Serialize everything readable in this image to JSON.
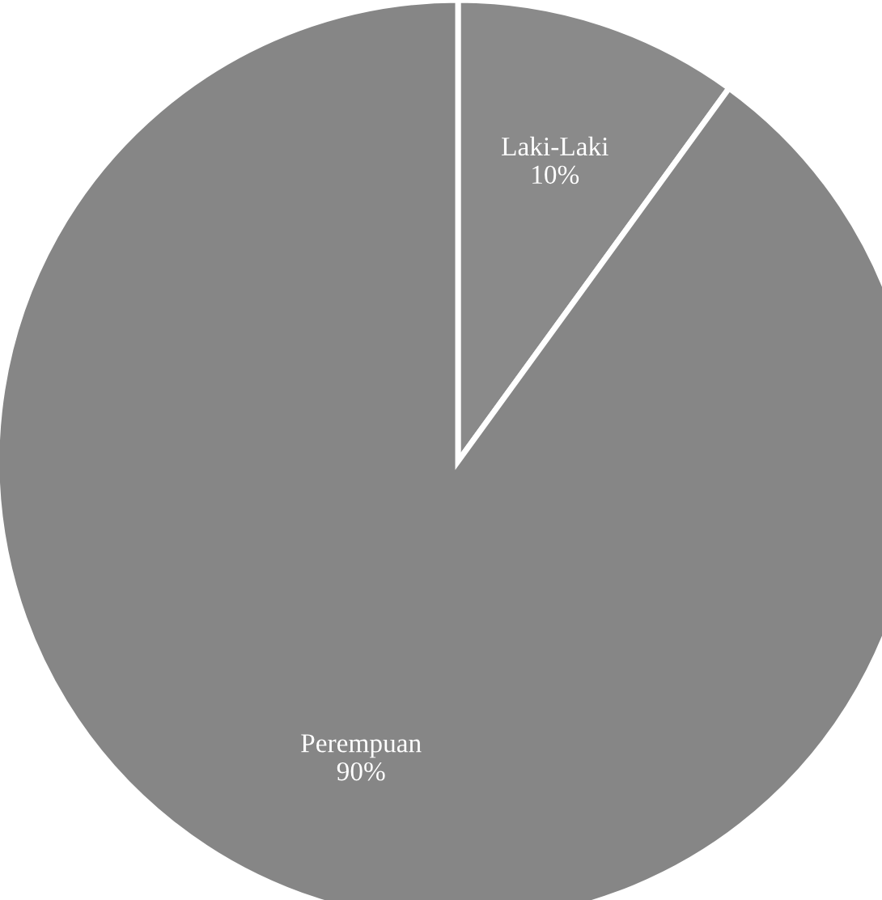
{
  "chart_data": {
    "type": "pie",
    "categories": [
      "Laki-Laki",
      "Perempuan"
    ],
    "values": [
      10,
      90
    ],
    "value_labels": [
      "10%",
      "90%"
    ],
    "colors": [
      "#8a8a8a",
      "#868686"
    ]
  }
}
